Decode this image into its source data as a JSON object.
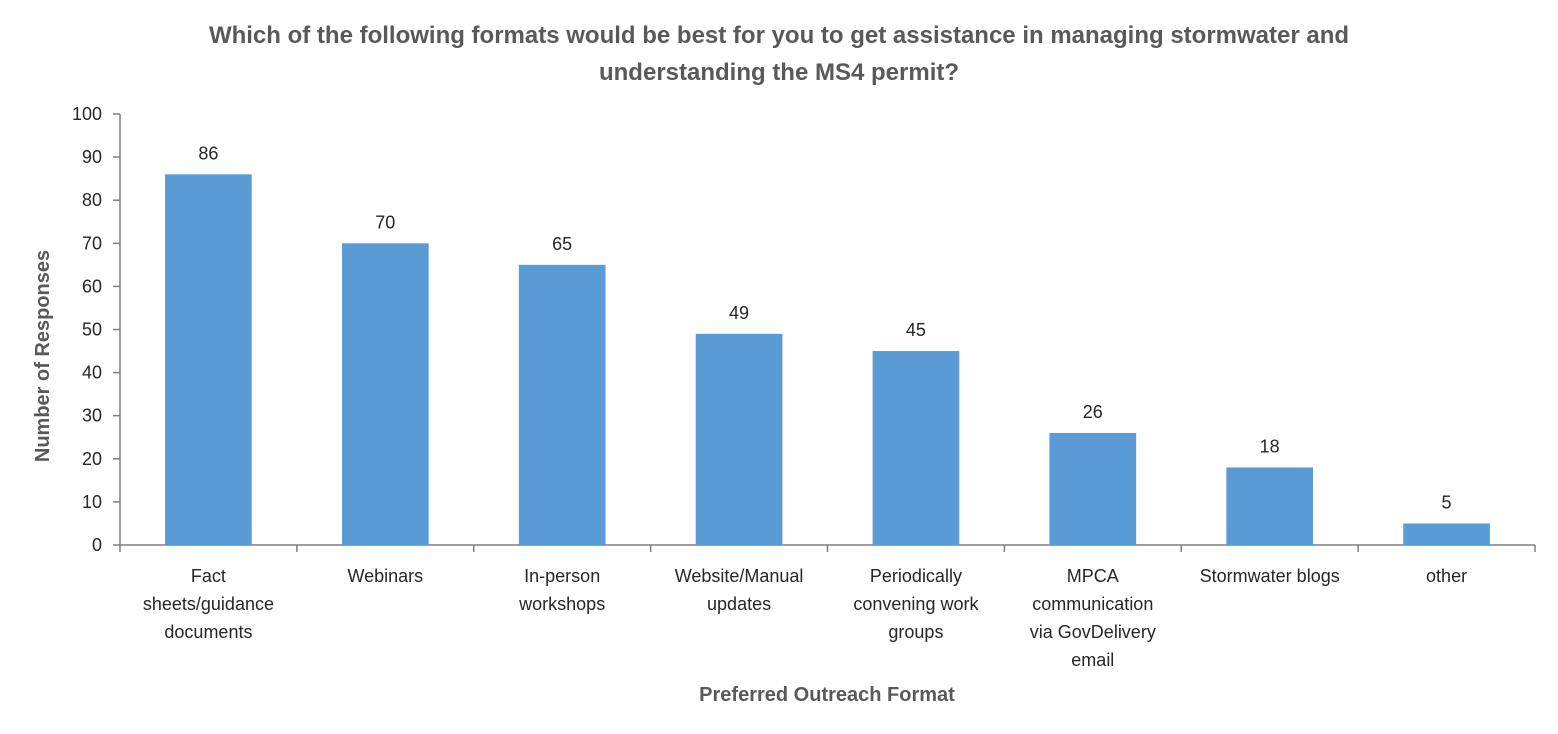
{
  "chart_data": {
    "type": "bar",
    "title_lines": [
      "Which of the following formats would be best for you to get assistance in managing stormwater and",
      "understanding the MS4 permit?"
    ],
    "xlabel": "Preferred Outreach Format",
    "ylabel": "Number of Responses",
    "ylim": [
      0,
      100
    ],
    "yticks": [
      0,
      10,
      20,
      30,
      40,
      50,
      60,
      70,
      80,
      90,
      100
    ],
    "grid": false,
    "bar_color": "#5B9BD5",
    "categories": [
      [
        "Fact",
        "sheets/guidance",
        "documents"
      ],
      [
        "Webinars"
      ],
      [
        "In-person",
        "workshops"
      ],
      [
        "Website/Manual",
        "updates"
      ],
      [
        "Periodically",
        "convening work",
        "groups"
      ],
      [
        "MPCA",
        "communication",
        "via GovDelivery",
        "email"
      ],
      [
        "Stormwater blogs"
      ],
      [
        "other"
      ]
    ],
    "values": [
      86,
      70,
      65,
      49,
      45,
      26,
      18,
      5
    ],
    "data_labels": true
  }
}
